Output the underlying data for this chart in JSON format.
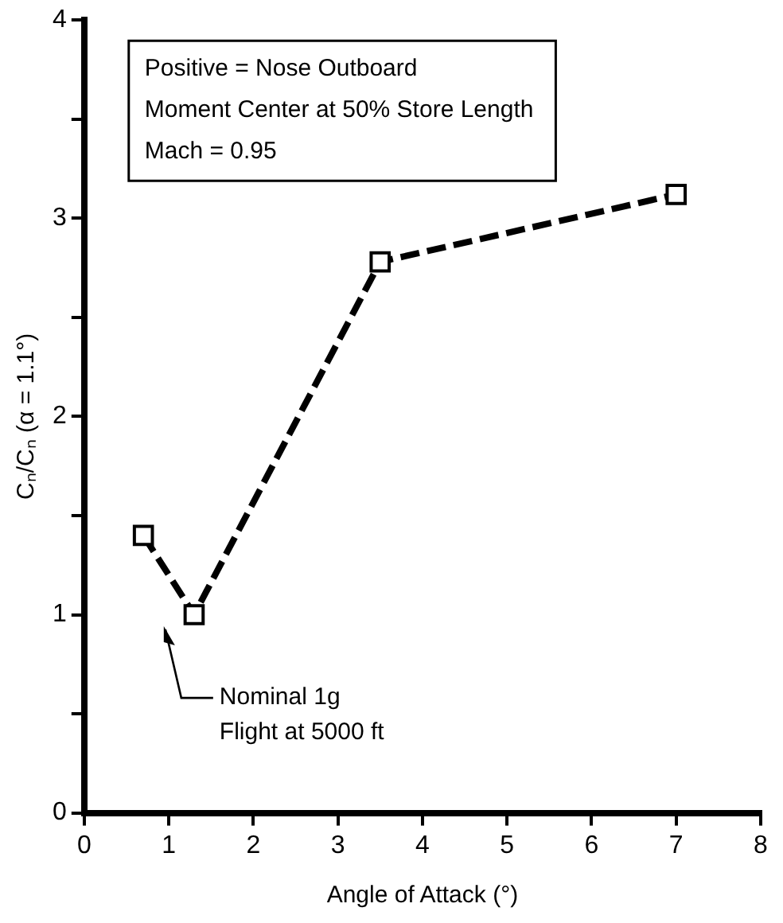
{
  "chart_data": {
    "type": "line",
    "xlabel": "Angle of Attack (°)",
    "ylabel": "Cₙ/Cₙ (α = 1.1°)",
    "x": [
      0.7,
      1.3,
      3.5,
      7.0
    ],
    "series": [
      {
        "color": "#000000",
        "values": [
          1.4,
          1.0,
          2.78,
          3.12
        ]
      }
    ],
    "xlim": [
      0,
      8
    ],
    "xticks": [
      0,
      1,
      2,
      3,
      4,
      5,
      6,
      7,
      8
    ],
    "ylim": [
      0,
      4
    ],
    "yticks": [
      0,
      {
        "value": 0.5,
        "label": null
      },
      1,
      {
        "value": 1.5,
        "label": null
      },
      2,
      {
        "value": 2.5,
        "label": null
      },
      3,
      {
        "value": 3.5,
        "label": null
      },
      4
    ],
    "marker": "square",
    "line_style": "dashed",
    "grid": false,
    "legend": false,
    "annotations": [
      "Positive = Nose Outboard",
      "Moment Center at 50% Store Length",
      "Mach = 0.95",
      "Nominal 1g\nFlight at 5000 ft"
    ]
  }
}
